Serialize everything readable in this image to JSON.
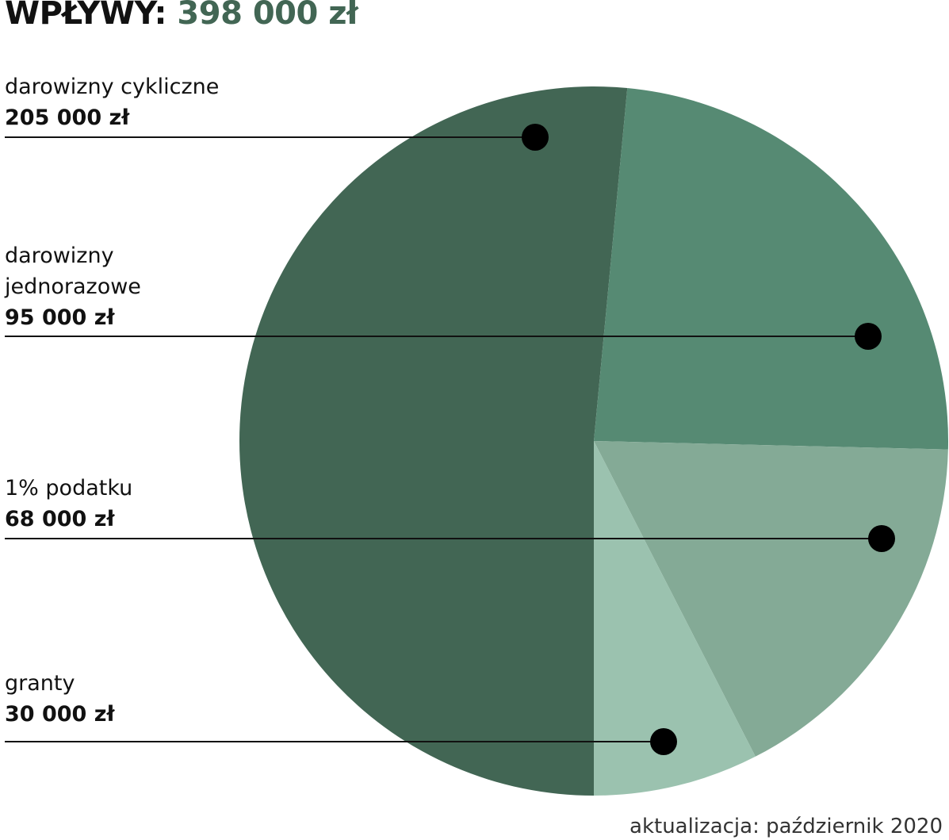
{
  "chart_data": {
    "type": "pie",
    "title": "WPŁYWY:",
    "subtitle": "398 000 zł",
    "categories": [
      "darowizny cykliczne",
      "darowizny jednorazowe",
      "1% podatku",
      "granty"
    ],
    "values": [
      205000,
      95000,
      68000,
      30000
    ],
    "value_labels": [
      "205 000 zł",
      "95 000 zł",
      "68 000 zł",
      "30 000 zł"
    ],
    "colors": [
      "#426654",
      "#568a73",
      "#84aa96",
      "#9bc2af"
    ],
    "note": "aktualizacja: październik 2020"
  }
}
